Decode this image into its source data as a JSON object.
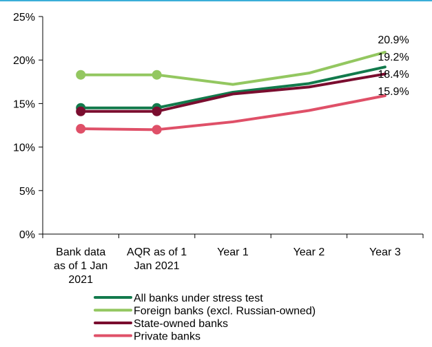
{
  "chart_data": {
    "type": "line",
    "title": "",
    "xlabel": "",
    "ylabel": "",
    "categories": [
      [
        "Bank data",
        "as of 1 Jan",
        "2021"
      ],
      [
        "AQR as of 1",
        "Jan 2021"
      ],
      [
        "Year 1"
      ],
      [
        "Year 2"
      ],
      [
        "Year 3"
      ]
    ],
    "ylim": [
      0,
      25
    ],
    "yticks": [
      0,
      5,
      10,
      15,
      20,
      25
    ],
    "ytick_labels": [
      "0%",
      "5%",
      "10%",
      "15%",
      "20%",
      "25%"
    ],
    "grid": false,
    "legend_position": "bottom",
    "series": [
      {
        "name": "All banks under stress test",
        "color": "#127a4c",
        "values": [
          14.5,
          14.5,
          16.3,
          17.3,
          19.2
        ],
        "marker_points": [
          0,
          1
        ],
        "end_label": "19.2%"
      },
      {
        "name": "Foreign banks (excl. Russian-owned)",
        "color": "#93c760",
        "values": [
          18.3,
          18.3,
          17.2,
          18.5,
          20.9
        ],
        "marker_points": [
          0,
          1
        ],
        "end_label": "20.9%"
      },
      {
        "name": "State-owned banks",
        "color": "#7a0d2f",
        "values": [
          14.1,
          14.1,
          16.1,
          16.9,
          18.4
        ],
        "marker_points": [
          0,
          1
        ],
        "end_label": "18.4%"
      },
      {
        "name": "Private banks",
        "color": "#df5068",
        "values": [
          12.1,
          12.0,
          12.9,
          14.2,
          15.9
        ],
        "marker_points": [
          0,
          1
        ],
        "end_label": "15.9%"
      }
    ]
  }
}
